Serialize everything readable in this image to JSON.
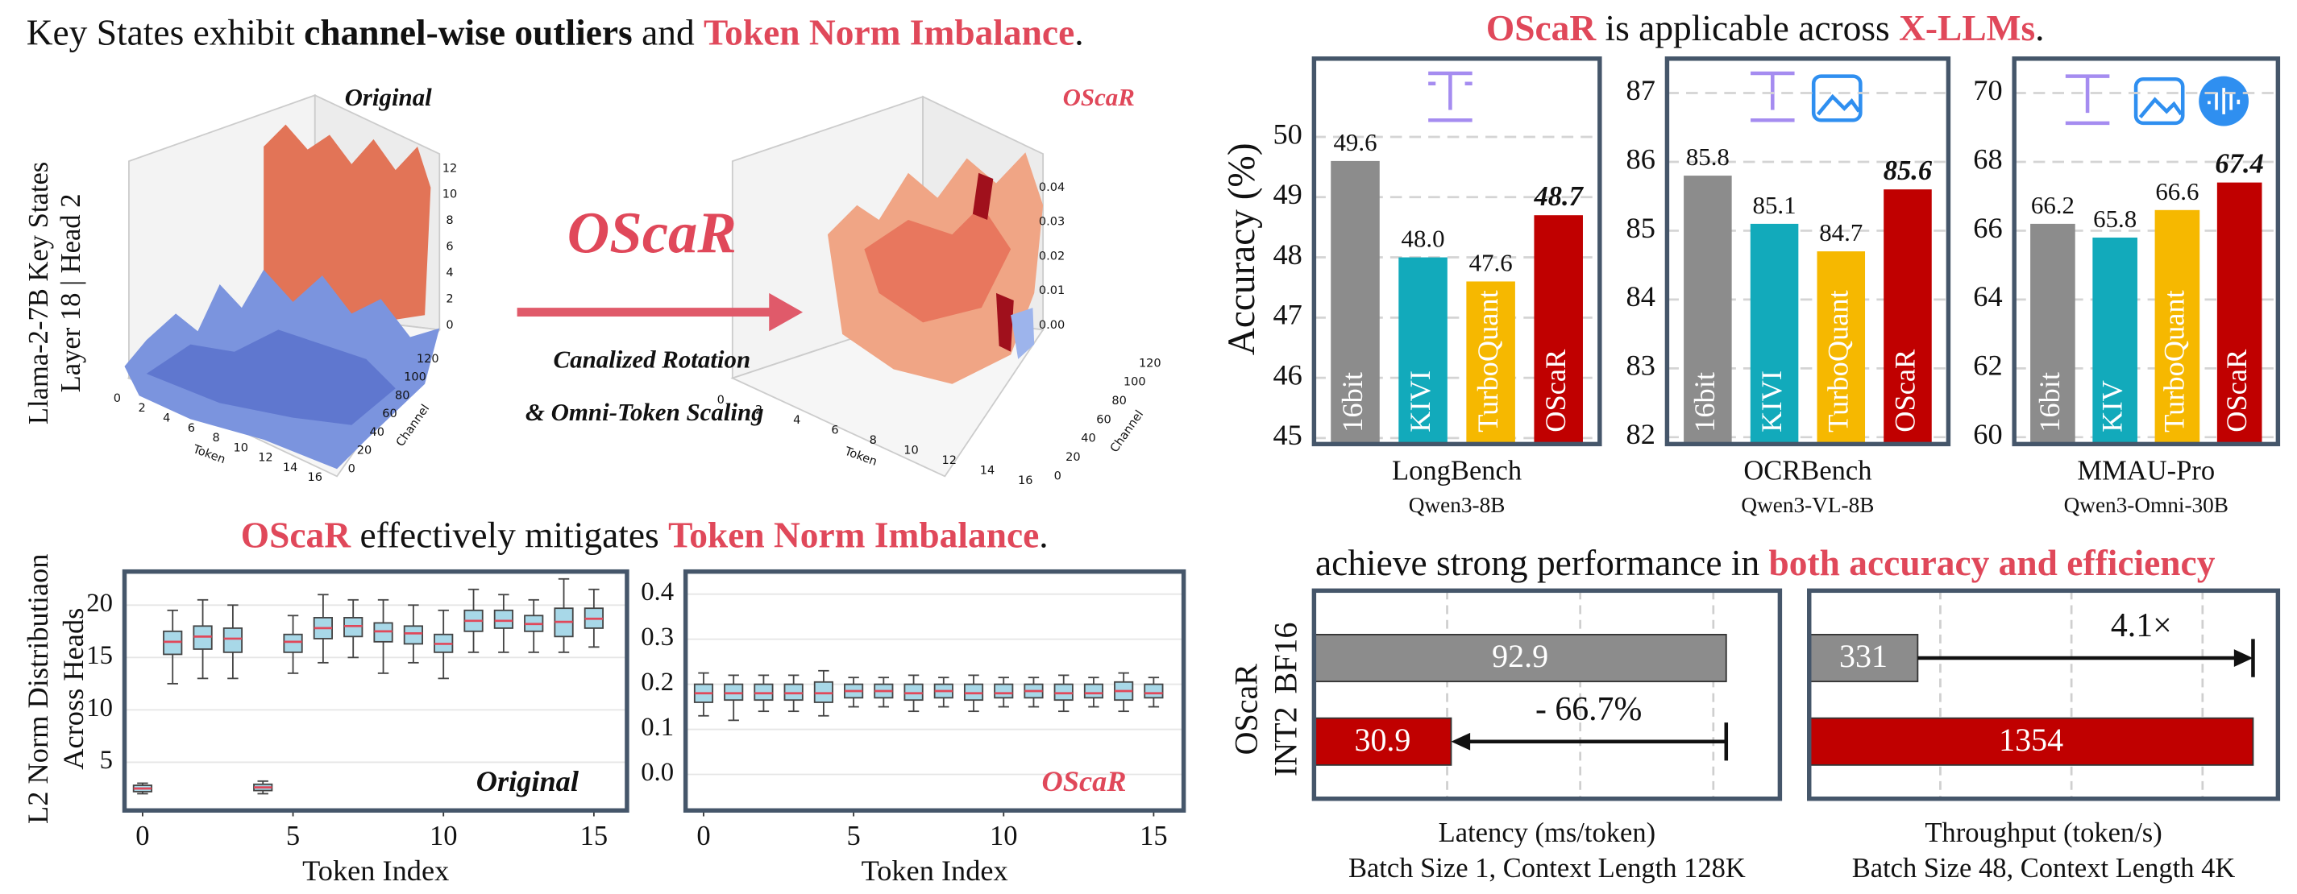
{
  "headings": {
    "key_states": [
      "Key States exhibit ",
      "channel-wise outliers",
      " and ",
      "Token Norm Imbalance",
      "."
    ],
    "applicable": [
      "OScaR",
      " is applicable across ",
      "X-LLMs",
      "."
    ],
    "mitigates": [
      "OScaR",
      " effectively mitigates ",
      "Token Norm Imbalance",
      "."
    ],
    "performance": [
      "achieve strong performance in ",
      "both accuracy and efficiency"
    ]
  },
  "surface_plots": {
    "ylabel": [
      "Llama-2-7B Key States",
      "Layer 18 | Head 2"
    ],
    "method": "OScaR",
    "method_lines": [
      "Canalized Rotation",
      "& Omni-Token Scaling"
    ],
    "plots": [
      {
        "title": "Original",
        "xlabel": "Token",
        "ylabel": "Channel",
        "xticks": [
          0,
          2,
          4,
          6,
          8,
          10,
          12,
          14,
          16
        ],
        "yticks": [
          0,
          20,
          40,
          60,
          80,
          100,
          120
        ],
        "zticks": [
          0,
          2,
          4,
          6,
          8,
          10,
          12
        ]
      },
      {
        "title": "OScaR",
        "xlabel": "Token",
        "ylabel": "Channel",
        "xticks": [
          0,
          2,
          4,
          6,
          8,
          10,
          12,
          14,
          16
        ],
        "yticks": [
          0,
          20,
          40,
          60,
          80,
          100,
          120
        ],
        "zticks": [
          {
            "value": 0,
            "label": "0.00"
          },
          {
            "value": 0.01,
            "label": "0.01"
          },
          {
            "value": 0.02,
            "label": "0.02"
          },
          {
            "value": 0.03,
            "label": "0.03"
          },
          {
            "value": 0.04,
            "label": "0.04"
          }
        ]
      }
    ]
  },
  "chart_data": [
    {
      "type": "bar",
      "xlabel": "LongBench",
      "subtitle": "Qwen3-8B",
      "ylabel": "Accuracy (%)",
      "categories": [
        "16bit",
        "KIVI",
        "TurboQuant",
        "OScaR"
      ],
      "values": [
        49.6,
        48.0,
        47.6,
        48.7
      ],
      "value_labels": [
        "49.6",
        "48.0",
        "47.6",
        "48.7"
      ],
      "colors": [
        "#8c8c8c",
        "#12aabb",
        "#f6b800",
        "#c00000"
      ],
      "ylim": [
        44.9,
        51.3
      ],
      "yticks": [
        45,
        46,
        47,
        48,
        49,
        50
      ],
      "grid": true
    },
    {
      "type": "bar",
      "xlabel": "OCRBench",
      "subtitle": "Qwen3-VL-8B",
      "categories": [
        "16bit",
        "KIVI",
        "TurboQuant",
        "OScaR"
      ],
      "values": [
        85.8,
        85.1,
        84.7,
        85.6
      ],
      "value_labels": [
        "85.8",
        "85.1",
        "84.7",
        "85.6"
      ],
      "colors": [
        "#8c8c8c",
        "#12aabb",
        "#f6b800",
        "#c00000"
      ],
      "ylim": [
        81.9,
        87.5
      ],
      "yticks": [
        82,
        83,
        84,
        85,
        86,
        87
      ],
      "grid": true
    },
    {
      "type": "bar",
      "xlabel": "MMAU-Pro",
      "subtitle": "Qwen3-Omni-30B",
      "categories": [
        "16bit",
        "KIV",
        "TurboQuant",
        "OScaR"
      ],
      "values": [
        66.2,
        65.8,
        66.6,
        67.4
      ],
      "value_labels": [
        "66.2",
        "65.8",
        "66.6",
        "67.4"
      ],
      "colors": [
        "#8c8c8c",
        "#12aabb",
        "#f6b800",
        "#c00000"
      ],
      "ylim": [
        59.8,
        71
      ],
      "yticks": [
        60,
        62,
        64,
        66,
        68,
        70
      ],
      "grid": true
    },
    {
      "type": "box",
      "annotation": "Original",
      "xlabel": "Token Index",
      "ylabel": [
        "L2 Norm Distributiaon",
        "Across Heads"
      ],
      "x": [
        0,
        1,
        2,
        3,
        4,
        5,
        6,
        7,
        8,
        9,
        10,
        11,
        12,
        13,
        14,
        15
      ],
      "median": [
        2.5,
        16.5,
        17,
        16.8,
        2.6,
        16.5,
        17.8,
        18,
        17.5,
        17.3,
        16.3,
        18.5,
        18.5,
        18.2,
        18.4,
        18.7
      ],
      "q1": [
        2.2,
        15.3,
        15.8,
        15.5,
        2.3,
        15.5,
        16.8,
        17,
        16.5,
        16.3,
        15.5,
        17.5,
        17.8,
        17.5,
        17,
        17.8
      ],
      "q3": [
        2.8,
        17.5,
        18,
        17.8,
        2.9,
        17.2,
        18.8,
        18.8,
        18.3,
        18,
        17.2,
        19.5,
        19.5,
        19,
        19.7,
        19.7
      ],
      "low": [
        2,
        12.5,
        13,
        13,
        2,
        13.5,
        14.5,
        15,
        13.5,
        14.5,
        13,
        15.5,
        15.5,
        15.5,
        15.5,
        16
      ],
      "high": [
        3,
        19.5,
        20.5,
        20,
        3.2,
        19,
        21,
        20.5,
        20.5,
        20,
        19.5,
        21.5,
        21,
        20.5,
        22.5,
        21.5
      ],
      "xlim": [
        -0.6,
        16.1
      ],
      "xticks": [
        0,
        5,
        10,
        15
      ],
      "ylim": [
        0.4,
        23.2
      ],
      "yticks": [
        5,
        10,
        15,
        20
      ],
      "grid": true
    },
    {
      "type": "box",
      "annotation": "OScaR",
      "xlabel": "Token Index",
      "x": [
        0,
        1,
        2,
        3,
        4,
        5,
        6,
        7,
        8,
        9,
        10,
        11,
        12,
        13,
        14,
        15
      ],
      "median": [
        0.18,
        0.18,
        0.18,
        0.18,
        0.18,
        0.185,
        0.185,
        0.18,
        0.185,
        0.18,
        0.18,
        0.185,
        0.18,
        0.18,
        0.185,
        0.18
      ],
      "q1": [
        0.16,
        0.165,
        0.165,
        0.165,
        0.16,
        0.17,
        0.17,
        0.165,
        0.17,
        0.165,
        0.17,
        0.17,
        0.165,
        0.17,
        0.165,
        0.17
      ],
      "q3": [
        0.2,
        0.2,
        0.2,
        0.2,
        0.205,
        0.2,
        0.2,
        0.2,
        0.2,
        0.2,
        0.2,
        0.2,
        0.2,
        0.2,
        0.205,
        0.2
      ],
      "low": [
        0.13,
        0.12,
        0.14,
        0.14,
        0.13,
        0.15,
        0.15,
        0.14,
        0.15,
        0.14,
        0.15,
        0.15,
        0.14,
        0.15,
        0.14,
        0.15
      ],
      "high": [
        0.225,
        0.22,
        0.22,
        0.22,
        0.23,
        0.215,
        0.215,
        0.22,
        0.215,
        0.22,
        0.215,
        0.215,
        0.22,
        0.215,
        0.225,
        0.215
      ],
      "xlim": [
        -0.6,
        16
      ],
      "xticks": [
        0,
        5,
        10,
        15
      ],
      "ylim": [
        -0.08,
        0.45
      ],
      "yticks": [
        {
          "value": 0,
          "label": "0.0"
        },
        0.1,
        0.2,
        0.3,
        0.4
      ],
      "grid": true
    },
    {
      "type": "hbar",
      "categories": [
        "BF16",
        "INT2"
      ],
      "group_label": "OScaR",
      "values": [
        92.9,
        30.9
      ],
      "colors": [
        "#8c8c8c",
        "#c00000"
      ],
      "annotation": "- 66.7%",
      "xlabel": "Latency (ms/token)",
      "subtitle": "Batch Size 1, Context Length 128K",
      "xlim": [
        0,
        105
      ],
      "xticks": [
        30,
        60,
        90
      ],
      "grid": true
    },
    {
      "type": "hbar",
      "values": [
        331,
        1354
      ],
      "colors": [
        "#8c8c8c",
        "#c00000"
      ],
      "annotation": "4.1×",
      "xlabel": "Throughput (token/s)",
      "subtitle": "Batch Size 48, Context Length 4K",
      "xlim": [
        0,
        1430
      ],
      "xticks": [
        400,
        800,
        1200
      ],
      "grid": true
    }
  ]
}
